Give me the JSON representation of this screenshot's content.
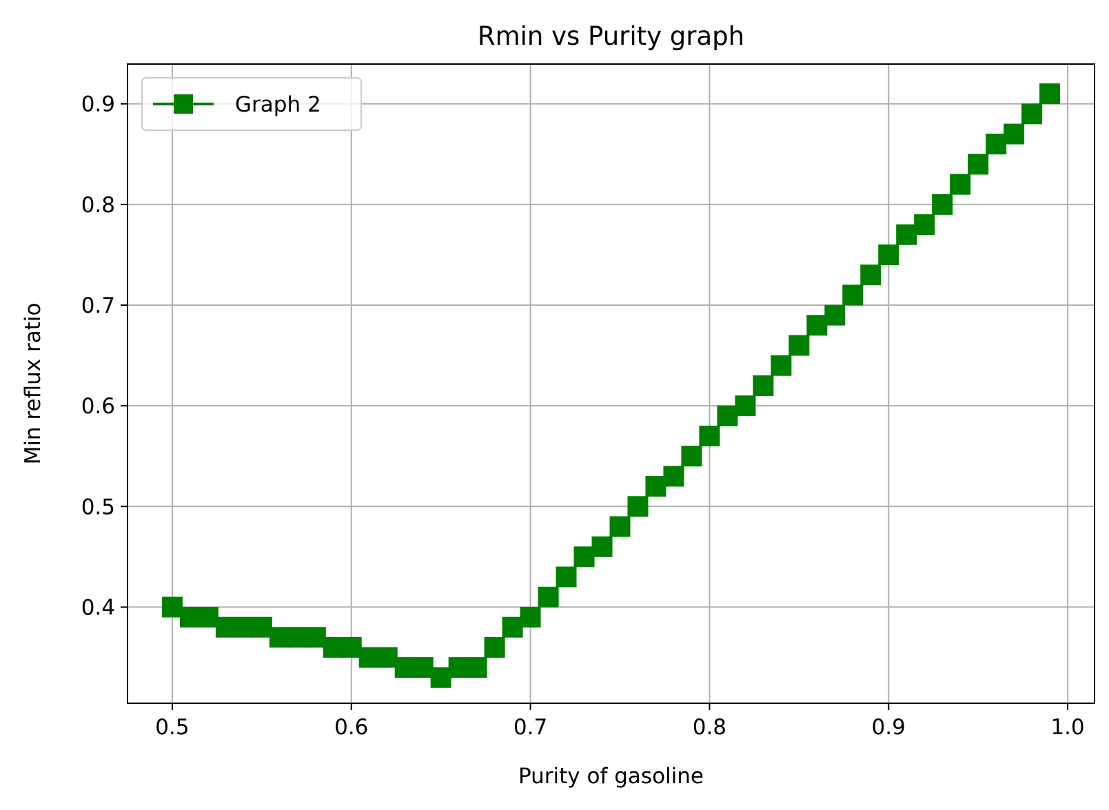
{
  "chart_data": {
    "type": "line",
    "title": "Rmin vs Purity  graph",
    "xlabel": "Purity of gasoline",
    "ylabel": "Min reflux ratio",
    "xlim": [
      0.475,
      1.015
    ],
    "ylim": [
      0.3045,
      0.9395
    ],
    "xticks": [
      "0.5",
      "0.6",
      "0.7",
      "0.8",
      "0.9",
      "1.0"
    ],
    "yticks": [
      "0.4",
      "0.5",
      "0.6",
      "0.7",
      "0.8",
      "0.9"
    ],
    "grid": true,
    "legend_position": "upper-left",
    "series": [
      {
        "name": "Graph 2",
        "color": "#008000",
        "marker": "square",
        "x": [
          0.5,
          0.51,
          0.52,
          0.53,
          0.54,
          0.55,
          0.56,
          0.57,
          0.58,
          0.59,
          0.6,
          0.61,
          0.62,
          0.63,
          0.64,
          0.65,
          0.66,
          0.67,
          0.68,
          0.69,
          0.7,
          0.71,
          0.72,
          0.73,
          0.74,
          0.75,
          0.76,
          0.77,
          0.78,
          0.79,
          0.8,
          0.81,
          0.82,
          0.83,
          0.84,
          0.85,
          0.86,
          0.87,
          0.88,
          0.89,
          0.9,
          0.91,
          0.92,
          0.93,
          0.94,
          0.95,
          0.96,
          0.97,
          0.98,
          0.99
        ],
        "y": [
          0.4,
          0.39,
          0.39,
          0.38,
          0.38,
          0.38,
          0.37,
          0.37,
          0.37,
          0.36,
          0.36,
          0.35,
          0.35,
          0.34,
          0.34,
          0.33,
          0.34,
          0.34,
          0.36,
          0.38,
          0.39,
          0.41,
          0.43,
          0.45,
          0.46,
          0.48,
          0.5,
          0.52,
          0.53,
          0.55,
          0.57,
          0.59,
          0.6,
          0.62,
          0.64,
          0.66,
          0.68,
          0.69,
          0.71,
          0.73,
          0.75,
          0.77,
          0.78,
          0.8,
          0.82,
          0.84,
          0.86,
          0.87,
          0.89,
          0.91
        ]
      }
    ]
  }
}
